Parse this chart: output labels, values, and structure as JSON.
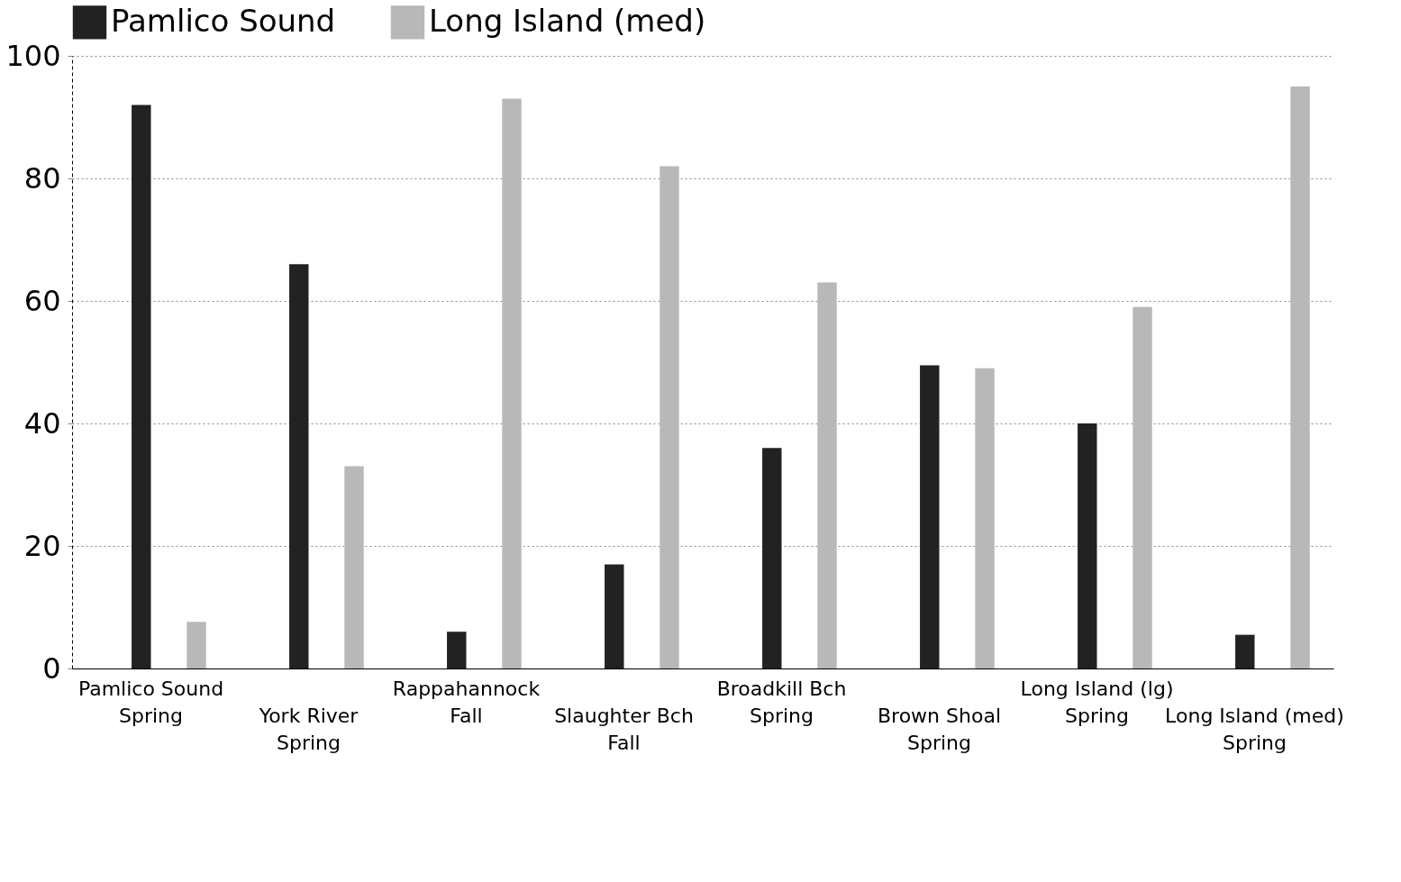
{
  "chart_data": {
    "type": "bar",
    "categories": [
      "Pamlico Sound\nSpring",
      "York River\nSpring",
      "Rappahannock\nFall",
      "Slaughter Bch\nFall",
      "Broadkill Bch\nSpring",
      "Brown Shoal\nSpring",
      "Long Island (lg)\nSpring",
      "Long Island (med)\nSpring"
    ],
    "series": [
      {
        "name": "Pamlico Sound",
        "color": "#222222",
        "values": [
          92,
          66,
          6,
          17,
          36,
          49.5,
          40,
          5.5
        ]
      },
      {
        "name": "Long Island (med)",
        "color": "#b8b8b8",
        "values": [
          7.6,
          33,
          93,
          82,
          63,
          49,
          59,
          95
        ]
      }
    ],
    "ylim": [
      0,
      100
    ],
    "yticks": [
      0,
      20,
      40,
      60,
      80,
      100
    ],
    "grid": "y",
    "legend": "top"
  }
}
